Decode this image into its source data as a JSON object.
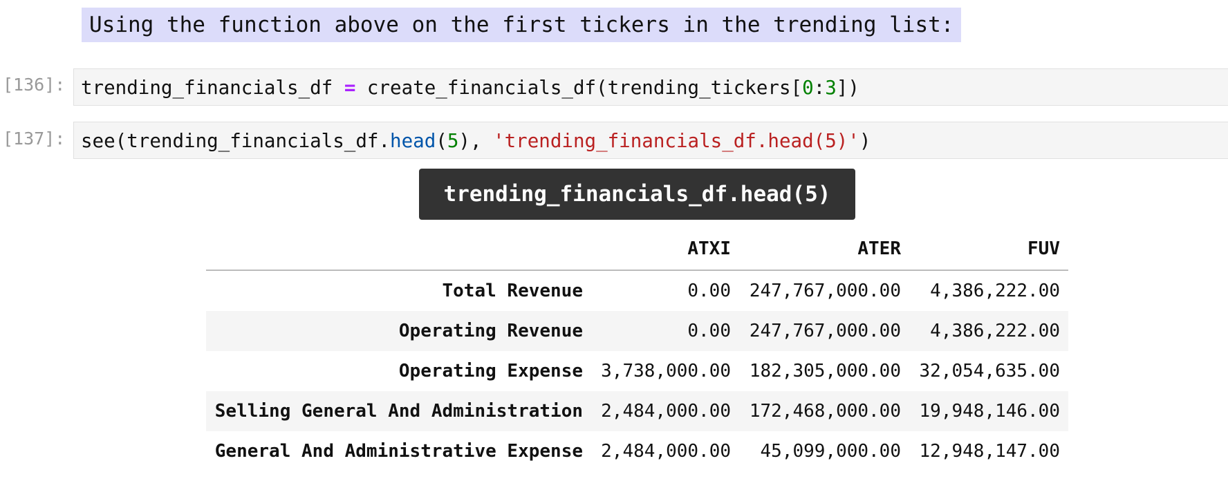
{
  "markdown": "Using the function above on the first tickers in the trending list:",
  "cells": [
    {
      "prompt": "[136]:",
      "code": [
        "trending_financials_df ",
        "=",
        " create_financials_df(trending_tickers[",
        "0",
        ":",
        "3",
        "])"
      ]
    },
    {
      "prompt": "[137]:",
      "code": [
        "see(trending_financials_df.",
        "head",
        "(",
        "5",
        "), ",
        "'trending_financials_df.head(5)'",
        ")"
      ]
    }
  ],
  "output": {
    "title": "trending_financials_df.head(5)",
    "table": {
      "columns": [
        "ATXI",
        "ATER",
        "FUV"
      ],
      "rows": [
        [
          "Total Revenue",
          "0.00",
          "247,767,000.00",
          "4,386,222.00"
        ],
        [
          "Operating Revenue",
          "0.00",
          "247,767,000.00",
          "4,386,222.00"
        ],
        [
          "Operating Expense",
          "3,738,000.00",
          "182,305,000.00",
          "32,054,635.00"
        ],
        [
          "Selling General And Administration",
          "2,484,000.00",
          "172,468,000.00",
          "19,948,146.00"
        ],
        [
          "General And Administrative Expense",
          "2,484,000.00",
          "45,099,000.00",
          "12,948,147.00"
        ]
      ]
    }
  }
}
